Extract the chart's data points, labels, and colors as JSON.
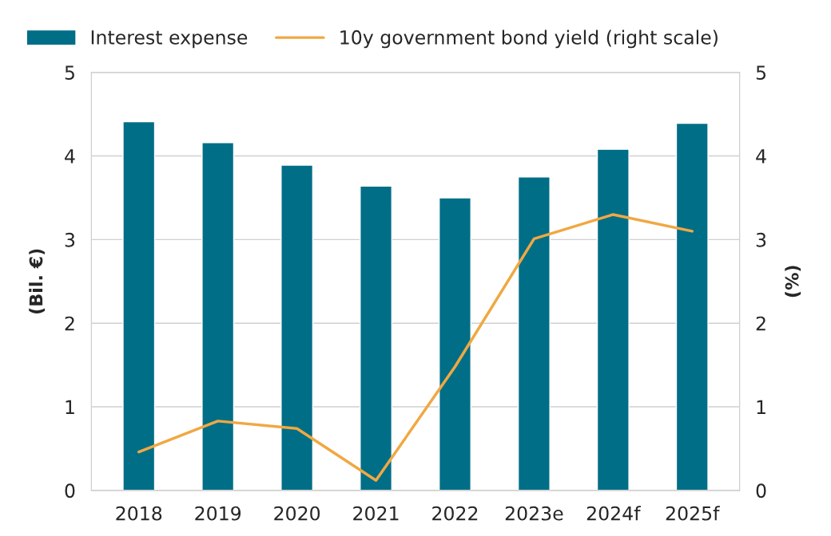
{
  "chart_data": {
    "type": "bar",
    "ylabel": "(Bil. €)",
    "y2label": "(%)",
    "categories": [
      "2018",
      "2019",
      "2020",
      "2021",
      "2022",
      "2023e",
      "2024f",
      "2025f"
    ],
    "series": [
      {
        "name": "Interest expense",
        "type": "bar",
        "color": "#006e87",
        "values": [
          4.41,
          4.16,
          3.89,
          3.64,
          3.5,
          3.75,
          4.08,
          4.39
        ]
      },
      {
        "name": "10y government bond yield (right scale)",
        "type": "line",
        "axis": "y2",
        "color": "#f0a842",
        "values": [
          0.46,
          0.83,
          0.74,
          0.12,
          1.48,
          3.01,
          3.3,
          3.1
        ]
      }
    ],
    "ylim": [
      0,
      5
    ],
    "yticks": [
      0,
      1,
      2,
      3,
      4,
      5
    ],
    "y2lim": [
      0,
      5
    ],
    "y2ticks": [
      0,
      1,
      2,
      3,
      4,
      5
    ],
    "grid": "y",
    "legend": "top",
    "line_style": "solid",
    "marker": "none"
  }
}
